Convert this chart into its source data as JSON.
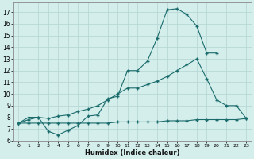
{
  "title": "",
  "xlabel": "Humidex (Indice chaleur)",
  "bg_color": "#d4eeec",
  "grid_color": "#b8d8d6",
  "line_color": "#1a6b6b",
  "xlim": [
    -0.5,
    23.5
  ],
  "ylim": [
    6.0,
    17.8
  ],
  "xticks": [
    0,
    1,
    2,
    3,
    4,
    5,
    6,
    7,
    8,
    9,
    10,
    11,
    12,
    13,
    14,
    15,
    16,
    17,
    18,
    19,
    20,
    21,
    22,
    23
  ],
  "yticks": [
    6,
    7,
    8,
    9,
    10,
    11,
    12,
    13,
    14,
    15,
    16,
    17
  ],
  "series1_x": [
    0,
    1,
    2,
    3,
    4,
    5,
    6,
    7,
    8,
    9,
    10,
    11,
    12,
    13,
    14,
    15,
    16,
    17,
    18,
    19,
    20
  ],
  "series1_y": [
    7.5,
    8.0,
    8.0,
    6.8,
    6.5,
    6.9,
    7.3,
    8.1,
    8.2,
    9.6,
    9.8,
    12.0,
    12.0,
    12.8,
    14.8,
    17.2,
    17.3,
    16.8,
    15.8,
    13.5,
    13.5
  ],
  "series2_x": [
    0,
    1,
    2,
    3,
    4,
    5,
    6,
    7,
    8,
    9,
    10,
    11,
    12,
    13,
    14,
    15,
    16,
    17,
    18,
    19,
    20,
    21,
    22,
    23
  ],
  "series2_y": [
    7.5,
    7.8,
    8.0,
    7.9,
    8.1,
    8.2,
    8.5,
    8.7,
    9.0,
    9.5,
    10.0,
    10.5,
    10.5,
    10.8,
    11.1,
    11.5,
    12.0,
    12.5,
    13.0,
    11.3,
    9.5,
    9.0,
    9.0,
    7.9
  ],
  "series3_x": [
    0,
    1,
    2,
    3,
    4,
    5,
    6,
    7,
    8,
    9,
    10,
    11,
    12,
    13,
    14,
    15,
    16,
    17,
    18,
    19,
    20,
    21,
    22,
    23
  ],
  "series3_y": [
    7.5,
    7.5,
    7.5,
    7.5,
    7.5,
    7.5,
    7.5,
    7.5,
    7.5,
    7.5,
    7.6,
    7.6,
    7.6,
    7.6,
    7.6,
    7.7,
    7.7,
    7.7,
    7.8,
    7.8,
    7.8,
    7.8,
    7.8,
    7.9
  ]
}
